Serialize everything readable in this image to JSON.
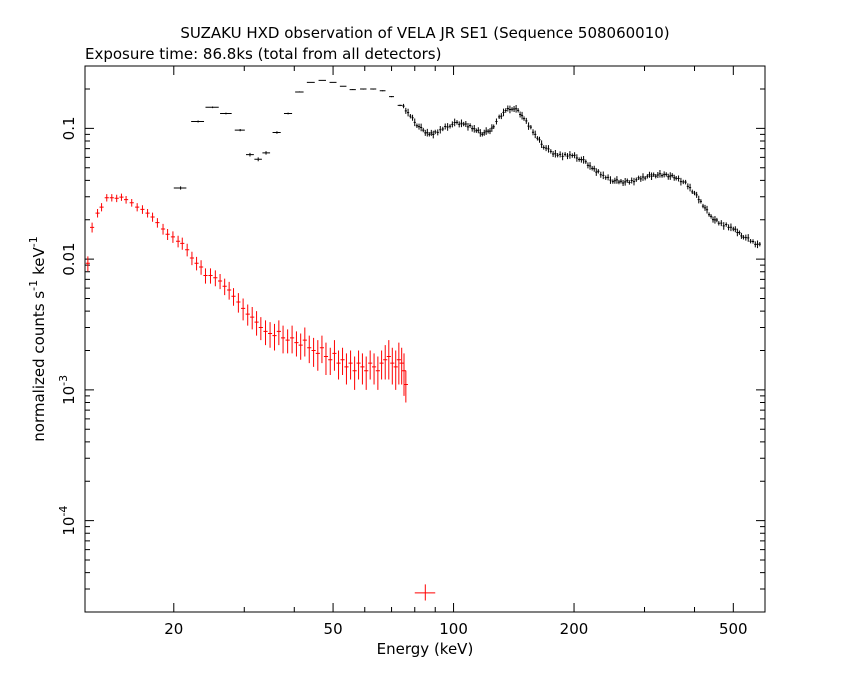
{
  "chart_data": {
    "type": "scatter",
    "title": "SUZAKU HXD observation of VELA JR SE1 (Sequence 508060010)",
    "subtitle": "Exposure time: 86.8ks (total from all detectors)",
    "xlabel": "Energy (keV)",
    "ylabel": "normalized counts s",
    "ylabel_unit": "keV",
    "ylabel_exp": "-1",
    "xscale": "log",
    "yscale": "log",
    "xlim": [
      12,
      600
    ],
    "ylim": [
      2e-05,
      0.3
    ],
    "x_ticks": [
      {
        "value": 20,
        "label": "20"
      },
      {
        "value": 50,
        "label": "50"
      },
      {
        "value": 100,
        "label": "100"
      },
      {
        "value": 200,
        "label": "200"
      },
      {
        "value": 500,
        "label": "500"
      }
    ],
    "y_ticks": [
      {
        "value": 0.1,
        "label": "0.1"
      },
      {
        "value": 0.01,
        "label": "0.01"
      },
      {
        "value": 0.001,
        "mant": "10",
        "exp": "-3"
      },
      {
        "value": 0.0001,
        "mant": "10",
        "exp": "-4"
      }
    ],
    "colors": {
      "gso": "#000000",
      "pin": "#ff0000"
    },
    "series": [
      {
        "color": "#000000",
        "binned_points": [
          {
            "x": 20.8,
            "xerr": [
              20.0,
              21.5
            ],
            "y": 0.035,
            "yerr": 0.001
          },
          {
            "x": 23.0,
            "xerr": [
              22.1,
              23.8
            ],
            "y": 0.113,
            "yerr": 0.002
          },
          {
            "x": 25.0,
            "xerr": [
              24.0,
              25.9
            ],
            "y": 0.145,
            "yerr": 0.002
          },
          {
            "x": 27.0,
            "xerr": [
              26.1,
              27.9
            ],
            "y": 0.13,
            "yerr": 0.002
          },
          {
            "x": 29.3,
            "xerr": [
              28.4,
              30.1
            ],
            "y": 0.097,
            "yerr": 0.002
          },
          {
            "x": 31.0,
            "xerr": [
              30.3,
              31.7
            ],
            "y": 0.063,
            "yerr": 0.002
          },
          {
            "x": 32.5,
            "xerr": [
              31.8,
              33.2
            ],
            "y": 0.058,
            "yerr": 0.002
          },
          {
            "x": 34.0,
            "xerr": [
              33.3,
              34.8
            ],
            "y": 0.065,
            "yerr": 0.002
          },
          {
            "x": 36.2,
            "xerr": [
              35.3,
              37.0
            ],
            "y": 0.093,
            "yerr": 0.002
          },
          {
            "x": 38.6,
            "xerr": [
              37.7,
              39.5
            ],
            "y": 0.13,
            "yerr": 0.002
          },
          {
            "x": 41.2,
            "xerr": [
              40.2,
              42.2
            ],
            "y": 0.19,
            "yerr": 0.002
          },
          {
            "x": 44.0,
            "xerr": [
              43.0,
              45.0
            ],
            "y": 0.225,
            "yerr": 0.002
          },
          {
            "x": 47.0,
            "xerr": [
              46.0,
              48.0
            ],
            "y": 0.233,
            "yerr": 0.002
          },
          {
            "x": 50.0,
            "xerr": [
              49.0,
              51.0
            ],
            "y": 0.225,
            "yerr": 0.002
          },
          {
            "x": 53.0,
            "xerr": [
              52.0,
              54.0
            ],
            "y": 0.21,
            "yerr": 0.002
          },
          {
            "x": 56.0,
            "xerr": [
              55.0,
              57.0
            ],
            "y": 0.198,
            "yerr": 0.002
          },
          {
            "x": 59.5,
            "xerr": [
              58.4,
              60.6
            ],
            "y": 0.2,
            "yerr": 0.002
          },
          {
            "x": 63.0,
            "xerr": [
              61.9,
              64.1
            ],
            "y": 0.2,
            "yerr": 0.002
          },
          {
            "x": 66.5,
            "xerr": [
              65.4,
              67.6
            ],
            "y": 0.194,
            "yerr": 0.002
          },
          {
            "x": 70.0,
            "xerr": [
              69.0,
              71.0
            ],
            "y": 0.175,
            "yerr": 0.002
          },
          {
            "x": 73.5,
            "xerr": [
              72.5,
              74.5
            ],
            "y": 0.15,
            "yerr": 0.002
          }
        ],
        "curve_points": [
          [
            75,
            0.145
          ],
          [
            78,
            0.124
          ],
          [
            81,
            0.107
          ],
          [
            84,
            0.096
          ],
          [
            87,
            0.091
          ],
          [
            90,
            0.092
          ],
          [
            94,
            0.099
          ],
          [
            98,
            0.106
          ],
          [
            102,
            0.11
          ],
          [
            106,
            0.109
          ],
          [
            110,
            0.103
          ],
          [
            114,
            0.096
          ],
          [
            118,
            0.092
          ],
          [
            122,
            0.094
          ],
          [
            126,
            0.104
          ],
          [
            130,
            0.12
          ],
          [
            135,
            0.137
          ],
          [
            140,
            0.143
          ],
          [
            145,
            0.136
          ],
          [
            150,
            0.12
          ],
          [
            156,
            0.1
          ],
          [
            162,
            0.084
          ],
          [
            168,
            0.073
          ],
          [
            175,
            0.066
          ],
          [
            182,
            0.063
          ],
          [
            190,
            0.062
          ],
          [
            198,
            0.062
          ],
          [
            206,
            0.059
          ],
          [
            214,
            0.055
          ],
          [
            222,
            0.05
          ],
          [
            230,
            0.046
          ],
          [
            240,
            0.042
          ],
          [
            250,
            0.04
          ],
          [
            262,
            0.039
          ],
          [
            275,
            0.039
          ],
          [
            290,
            0.041
          ],
          [
            305,
            0.043
          ],
          [
            320,
            0.044
          ],
          [
            340,
            0.044
          ],
          [
            360,
            0.042
          ],
          [
            380,
            0.038
          ],
          [
            400,
            0.032
          ],
          [
            420,
            0.026
          ],
          [
            440,
            0.021
          ],
          [
            460,
            0.019
          ],
          [
            480,
            0.018
          ],
          [
            500,
            0.017
          ],
          [
            530,
            0.015
          ],
          [
            560,
            0.0135
          ],
          [
            590,
            0.0125
          ]
        ]
      },
      {
        "color": "#ff0000",
        "points": [
          [
            12.2,
            0.0093,
            0.0012
          ],
          [
            12.5,
            0.0175,
            0.0015
          ],
          [
            12.9,
            0.0225,
            0.0017
          ],
          [
            13.2,
            0.025,
            0.0018
          ],
          [
            13.6,
            0.0295,
            0.0019
          ],
          [
            14.0,
            0.0295,
            0.0019
          ],
          [
            14.4,
            0.0292,
            0.0019
          ],
          [
            14.8,
            0.0298,
            0.0019
          ],
          [
            15.2,
            0.0285,
            0.0019
          ],
          [
            15.7,
            0.027,
            0.0018
          ],
          [
            16.2,
            0.025,
            0.0018
          ],
          [
            16.7,
            0.024,
            0.0018
          ],
          [
            17.2,
            0.0225,
            0.0017
          ],
          [
            17.7,
            0.021,
            0.0017
          ],
          [
            18.2,
            0.019,
            0.0016
          ],
          [
            18.8,
            0.017,
            0.0016
          ],
          [
            19.3,
            0.0155,
            0.0015
          ],
          [
            19.9,
            0.0148,
            0.0015
          ],
          [
            20.5,
            0.0137,
            0.0014
          ],
          [
            21.0,
            0.0132,
            0.0014
          ],
          [
            21.6,
            0.0118,
            0.0013
          ],
          [
            22.2,
            0.0102,
            0.0012
          ],
          [
            22.8,
            0.0093,
            0.0011
          ],
          [
            23.4,
            0.0087,
            0.0011
          ],
          [
            24.0,
            0.0075,
            0.001
          ],
          [
            24.7,
            0.0075,
            0.001
          ],
          [
            25.4,
            0.0072,
            0.001
          ],
          [
            26.1,
            0.0068,
            0.0009
          ],
          [
            26.8,
            0.0062,
            0.0009
          ],
          [
            27.5,
            0.0058,
            0.0009
          ],
          [
            28.2,
            0.0052,
            0.0008
          ],
          [
            29.0,
            0.0047,
            0.0008
          ],
          [
            29.8,
            0.0042,
            0.0008
          ],
          [
            30.6,
            0.0038,
            0.0007
          ],
          [
            31.4,
            0.0036,
            0.0007
          ],
          [
            32.2,
            0.0033,
            0.0007
          ],
          [
            33.0,
            0.003,
            0.0006
          ],
          [
            33.9,
            0.0028,
            0.0006
          ],
          [
            34.8,
            0.0027,
            0.0006
          ],
          [
            35.7,
            0.0026,
            0.0006
          ],
          [
            36.6,
            0.0028,
            0.0006
          ],
          [
            37.5,
            0.0025,
            0.0006
          ],
          [
            38.5,
            0.0024,
            0.0005
          ],
          [
            39.5,
            0.0025,
            0.0006
          ],
          [
            40.5,
            0.0023,
            0.0005
          ],
          [
            41.5,
            0.0022,
            0.0005
          ],
          [
            42.5,
            0.0024,
            0.0006
          ],
          [
            43.6,
            0.0021,
            0.0005
          ],
          [
            44.7,
            0.002,
            0.0005
          ],
          [
            45.8,
            0.0019,
            0.0005
          ],
          [
            46.9,
            0.0021,
            0.0005
          ],
          [
            48.0,
            0.0018,
            0.0005
          ],
          [
            49.2,
            0.0017,
            0.0004
          ],
          [
            50.4,
            0.0019,
            0.0005
          ],
          [
            51.6,
            0.0016,
            0.0004
          ],
          [
            52.8,
            0.0017,
            0.0004
          ],
          [
            54.0,
            0.0015,
            0.0004
          ],
          [
            55.3,
            0.0016,
            0.0004
          ],
          [
            56.6,
            0.0014,
            0.0004
          ],
          [
            57.9,
            0.0016,
            0.0004
          ],
          [
            59.2,
            0.0015,
            0.0004
          ],
          [
            60.5,
            0.0014,
            0.0004
          ],
          [
            61.9,
            0.0016,
            0.0004
          ],
          [
            63.3,
            0.0015,
            0.0004
          ],
          [
            64.7,
            0.0014,
            0.0004
          ],
          [
            66.1,
            0.0016,
            0.0004
          ],
          [
            67.5,
            0.0017,
            0.0005
          ],
          [
            68.9,
            0.0018,
            0.0006
          ],
          [
            70.3,
            0.0016,
            0.0005
          ],
          [
            71.7,
            0.0015,
            0.0005
          ],
          [
            73.0,
            0.0017,
            0.0006
          ],
          [
            74.2,
            0.0016,
            0.0005
          ],
          [
            75.2,
            0.0014,
            0.0005
          ],
          [
            76.0,
            0.0011,
            0.0003
          ]
        ],
        "outlier": {
          "x": 85,
          "xerr": [
            80,
            90
          ],
          "y": 2.8e-05,
          "yerr_low": 2.45e-05,
          "yerr_high": 3.25e-05
        }
      }
    ]
  }
}
